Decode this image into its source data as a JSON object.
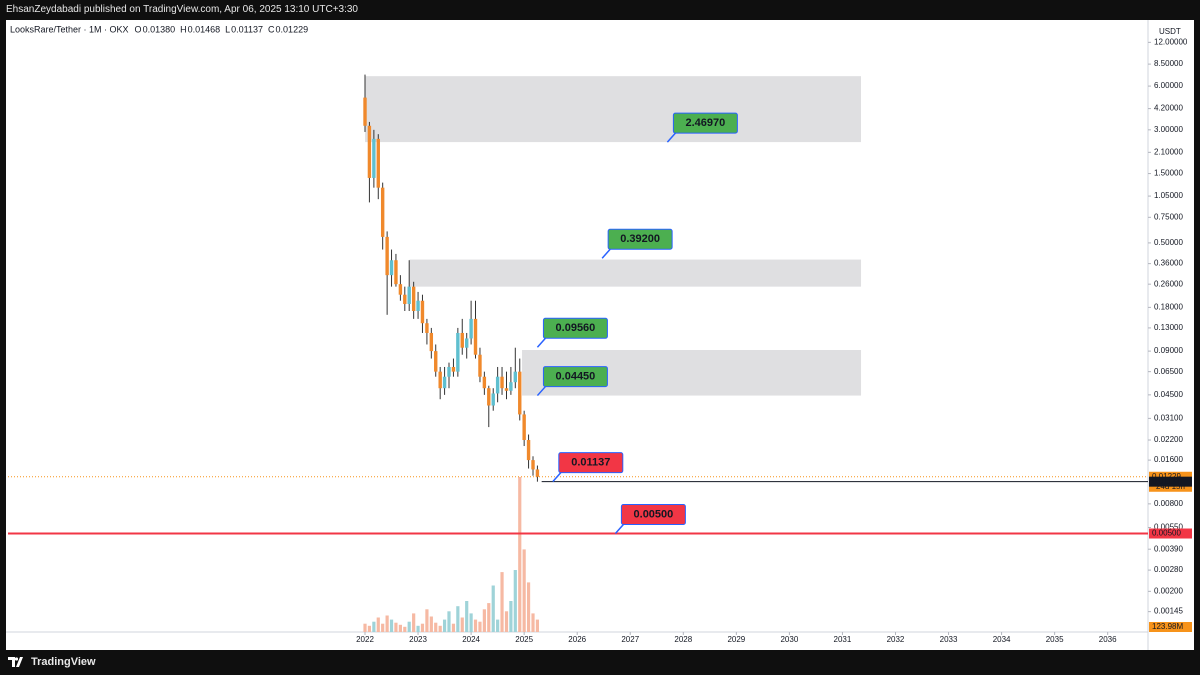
{
  "header": {
    "publisher": "EhsanZeydabadi published on TradingView.com, Apr 06, 2025 13:10 UTC+3:30"
  },
  "footer": {
    "brand": "TradingView"
  },
  "chart_data": {
    "type": "candlestick",
    "title": "LooksRare/Tether · 1M · OKX",
    "ohlc_legend": [
      {
        "key": "O",
        "value": 0.0138,
        "label": "0.01380"
      },
      {
        "key": "H",
        "value": 0.01468,
        "label": "0.01468"
      },
      {
        "key": "L",
        "value": 0.01137,
        "label": "0.01137"
      },
      {
        "key": "C",
        "value": 0.01229,
        "label": "0.01229"
      }
    ],
    "y_unit": "USDT",
    "log_scale": true,
    "grid": false,
    "up_color": "#5fbfcf",
    "down_color": "#f0892c",
    "x": [
      2022,
      2022.083,
      2022.167,
      2022.25,
      2022.333,
      2022.417,
      2022.5,
      2022.583,
      2022.667,
      2022.75,
      2022.833,
      2022.917,
      2023,
      2023.083,
      2023.167,
      2023.25,
      2023.333,
      2023.417,
      2023.5,
      2023.583,
      2023.667,
      2023.75,
      2023.833,
      2023.917,
      2024,
      2024.083,
      2024.167,
      2024.25,
      2024.333,
      2024.417,
      2024.5,
      2024.583,
      2024.667,
      2024.75,
      2024.833,
      2024.917,
      2025,
      2025.083,
      2025.167,
      2025.25
    ],
    "open": [
      5.0,
      3.2,
      1.4,
      2.6,
      1.2,
      0.55,
      0.3,
      0.38,
      0.26,
      0.22,
      0.19,
      0.25,
      0.17,
      0.2,
      0.14,
      0.12,
      0.09,
      0.065,
      0.05,
      0.06,
      0.07,
      0.065,
      0.12,
      0.095,
      0.11,
      0.15,
      0.085,
      0.06,
      0.05,
      0.038,
      0.046,
      0.06,
      0.05,
      0.048,
      0.055,
      0.065,
      0.033,
      0.022,
      0.016,
      0.0138
    ],
    "high": [
      7.2,
      3.4,
      3.0,
      2.8,
      1.3,
      0.6,
      0.45,
      0.42,
      0.3,
      0.25,
      0.38,
      0.27,
      0.23,
      0.22,
      0.15,
      0.13,
      0.1,
      0.07,
      0.07,
      0.075,
      0.08,
      0.13,
      0.15,
      0.12,
      0.2,
      0.2,
      0.095,
      0.065,
      0.052,
      0.05,
      0.07,
      0.07,
      0.065,
      0.07,
      0.095,
      0.08,
      0.035,
      0.024,
      0.017,
      0.01468
    ],
    "low": [
      2.9,
      0.95,
      1.2,
      1.0,
      0.45,
      0.16,
      0.25,
      0.25,
      0.2,
      0.17,
      0.17,
      0.15,
      0.15,
      0.12,
      0.1,
      0.08,
      0.06,
      0.042,
      0.045,
      0.05,
      0.06,
      0.06,
      0.085,
      0.08,
      0.1,
      0.08,
      0.055,
      0.045,
      0.027,
      0.035,
      0.04,
      0.045,
      0.042,
      0.045,
      0.05,
      0.03,
      0.02,
      0.014,
      0.0125,
      0.01137
    ],
    "close": [
      3.2,
      1.4,
      2.6,
      1.2,
      0.55,
      0.3,
      0.38,
      0.26,
      0.22,
      0.19,
      0.25,
      0.17,
      0.2,
      0.14,
      0.12,
      0.09,
      0.065,
      0.05,
      0.06,
      0.07,
      0.065,
      0.12,
      0.095,
      0.11,
      0.15,
      0.085,
      0.06,
      0.05,
      0.038,
      0.046,
      0.06,
      0.05,
      0.048,
      0.055,
      0.065,
      0.033,
      0.022,
      0.016,
      0.0138,
      0.01229
    ],
    "volume": {
      "up_color": "#9fd3d8",
      "down_color": "#f6b9a3",
      "values": [
        83,
        62,
        103,
        145,
        83,
        165,
        124,
        93,
        72,
        52,
        103,
        186,
        62,
        83,
        227,
        155,
        93,
        62,
        124,
        207,
        83,
        258,
        145,
        310,
        186,
        124,
        103,
        227,
        289,
        465,
        124,
        599,
        207,
        310,
        620,
        1550,
        826,
        496,
        186,
        123.98
      ],
      "last": {
        "value": 123.98,
        "label": "123.98M",
        "color": "#f7931a"
      }
    },
    "xlim": [
      2015.27,
      2036.76
    ],
    "xticks": [
      2022,
      2023,
      2024,
      2025,
      2026,
      2027,
      2028,
      2029,
      2030,
      2031,
      2032,
      2033,
      2034,
      2035,
      2036
    ],
    "ylim": [
      0.00105,
      17.1
    ],
    "yticks": [
      {
        "value": 12,
        "label": "12.00000"
      },
      {
        "value": 8.5,
        "label": "8.50000"
      },
      {
        "value": 6,
        "label": "6.00000"
      },
      {
        "value": 4.2,
        "label": "4.20000"
      },
      {
        "value": 3,
        "label": "3.00000"
      },
      {
        "value": 2.1,
        "label": "2.10000"
      },
      {
        "value": 1.5,
        "label": "1.50000"
      },
      {
        "value": 1.05,
        "label": "1.05000"
      },
      {
        "value": 0.75,
        "label": "0.75000"
      },
      {
        "value": 0.5,
        "label": "0.50000"
      },
      {
        "value": 0.36,
        "label": "0.36000"
      },
      {
        "value": 0.26,
        "label": "0.26000"
      },
      {
        "value": 0.18,
        "label": "0.18000"
      },
      {
        "value": 0.13,
        "label": "0.13000"
      },
      {
        "value": 0.09,
        "label": "0.09000"
      },
      {
        "value": 0.065,
        "label": "0.06500"
      },
      {
        "value": 0.045,
        "label": "0.04500"
      },
      {
        "value": 0.031,
        "label": "0.03100"
      },
      {
        "value": 0.022,
        "label": "0.02200"
      },
      {
        "value": 0.016,
        "label": "0.01600"
      },
      {
        "value": 0.008,
        "label": "0.00800"
      },
      {
        "value": 0.0055,
        "label": "0.00550"
      },
      {
        "value": 0.0039,
        "label": "0.00390"
      },
      {
        "value": 0.0028,
        "label": "0.00280"
      },
      {
        "value": 0.002,
        "label": "0.00200"
      },
      {
        "value": 0.00145,
        "label": "0.00145"
      }
    ],
    "zones": [
      {
        "x": [
          2022,
          2031.35
        ],
        "y": [
          2.4697,
          7.02
        ]
      },
      {
        "x": [
          2022.84,
          2031.35
        ],
        "y": [
          0.25,
          0.384
        ]
      },
      {
        "x": [
          2024.96,
          2031.35
        ],
        "y": [
          0.0445,
          0.0916
        ]
      }
    ],
    "annotations": [
      {
        "label": "2.46970",
        "value": 2.4697,
        "x": 2027.7,
        "color": "#4caf50"
      },
      {
        "label": "0.39200",
        "value": 0.392,
        "x": 2026.47,
        "color": "#4caf50"
      },
      {
        "label": "0.09560",
        "value": 0.0956,
        "x": 2025.25,
        "color": "#4caf50"
      },
      {
        "label": "0.04450",
        "value": 0.0445,
        "x": 2025.25,
        "color": "#4caf50"
      },
      {
        "label": "0.01137",
        "value": 0.01137,
        "x": 2025.54,
        "color": "#f23645"
      },
      {
        "label": "0.00500",
        "value": 0.005,
        "x": 2026.72,
        "color": "#f23645"
      }
    ],
    "horizontal_lines": [
      {
        "value": 0.005,
        "label": "0.00500",
        "color": "#f23645",
        "x_start": 2015.27
      },
      {
        "value": 0.01137,
        "label": "0.01137",
        "color": "#131722",
        "x_start": 2025.33
      }
    ],
    "last_price": {
      "value": 0.01229,
      "label": "0.01229",
      "countdown": "24d 15h",
      "color": "#f7931a"
    }
  }
}
